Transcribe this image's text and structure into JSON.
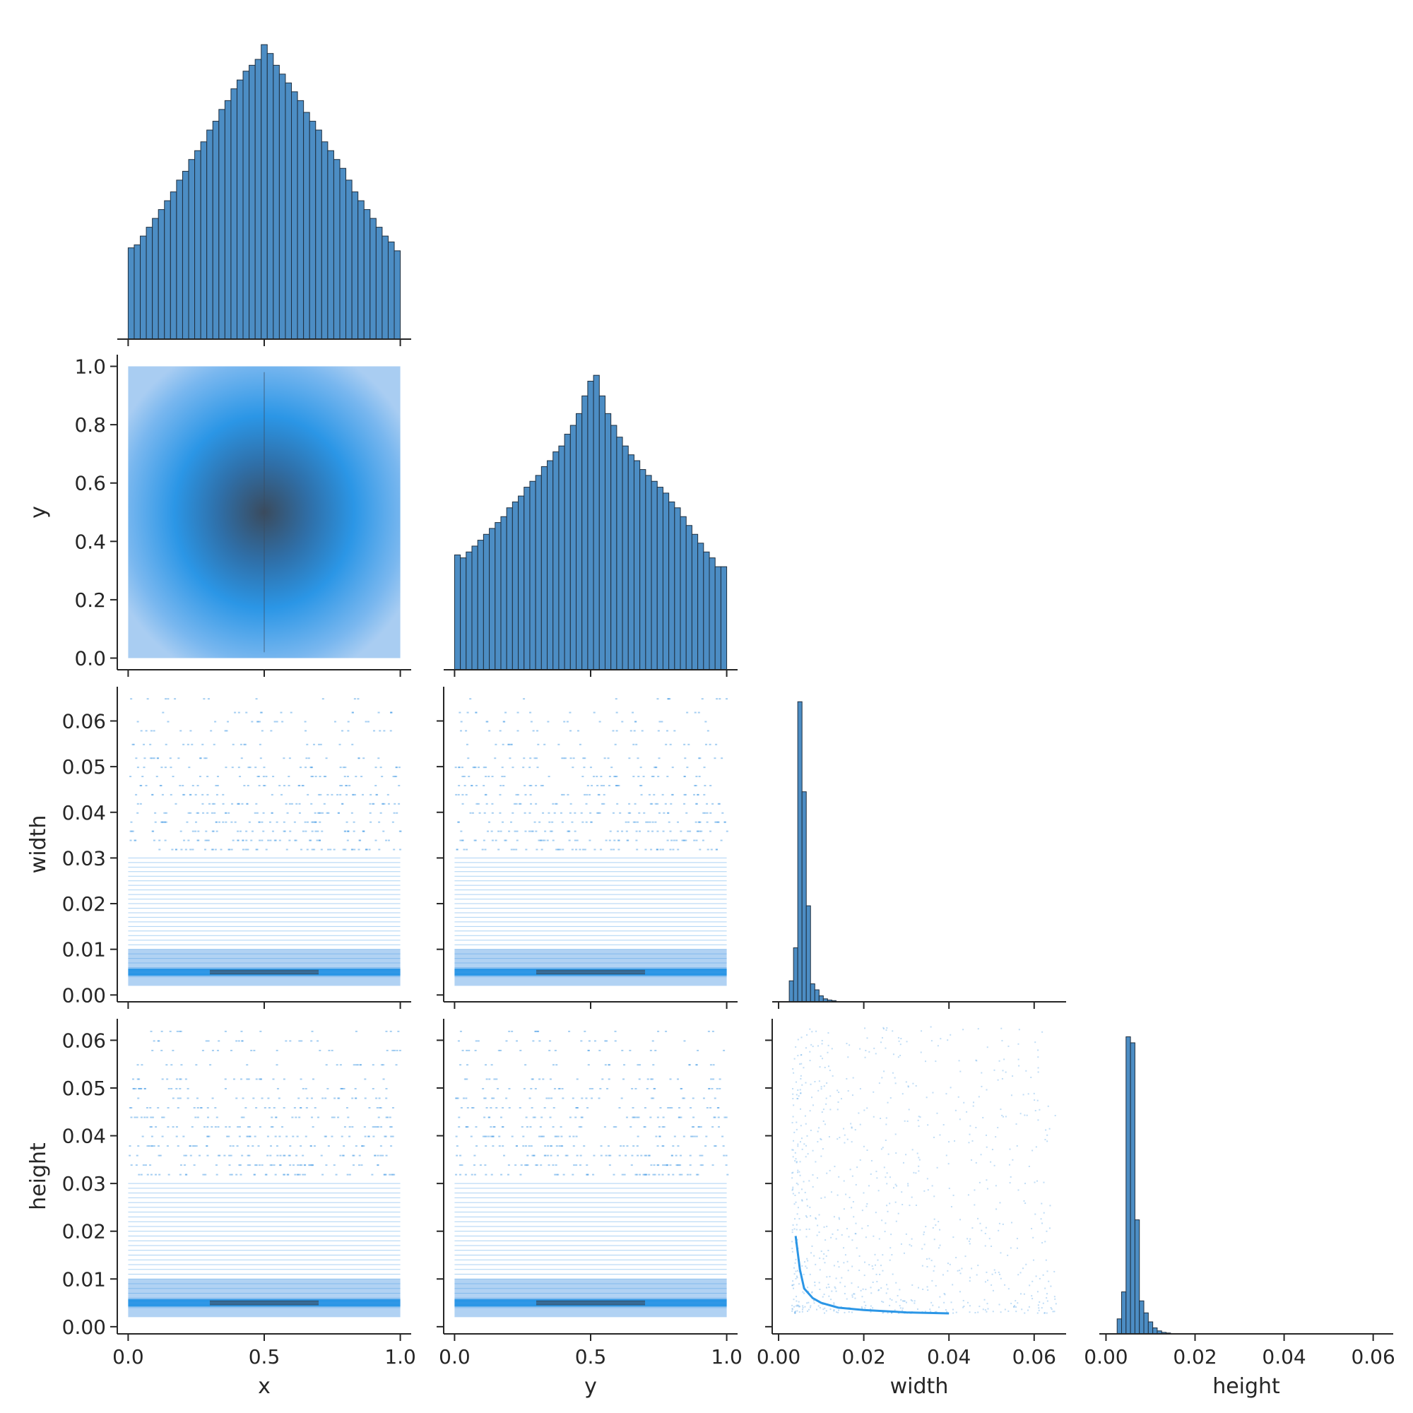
{
  "chart_data": {
    "type": "pairplot",
    "layout": "corner",
    "variables": [
      "x",
      "y",
      "width",
      "height"
    ],
    "colors": {
      "bar_fill": "#4C8DC4",
      "bar_edge": "#1f2f3f",
      "density_light": "#a9cdf2",
      "density_mid": "#2b96e6",
      "density_dark": "#3a4b5e",
      "points": "#4a9de6"
    },
    "axes": {
      "x": {
        "range": [
          -0.04,
          1.04
        ],
        "ticks": [
          0.0,
          0.5,
          1.0
        ],
        "tick_labels": [
          "0.0",
          "0.5",
          "1.0"
        ],
        "label": "x"
      },
      "y": {
        "range": [
          -0.04,
          1.04
        ],
        "ticks": [
          0.0,
          0.2,
          0.4,
          0.6,
          0.8,
          1.0
        ],
        "tick_labels": [
          "0.0",
          "0.2",
          "0.4",
          "0.6",
          "0.8",
          "1.0"
        ],
        "x_ticks": [
          0.0,
          0.5,
          1.0
        ],
        "x_tick_labels": [
          "0.0",
          "0.5",
          "1.0"
        ],
        "label": "y"
      },
      "width": {
        "range": [
          -0.0015,
          0.0675
        ],
        "ticks": [
          0.0,
          0.01,
          0.02,
          0.03,
          0.04,
          0.05,
          0.06
        ],
        "tick_labels": [
          "0.00",
          "0.01",
          "0.02",
          "0.03",
          "0.04",
          "0.05",
          "0.06"
        ],
        "x_ticks": [
          0.0,
          0.02,
          0.04,
          0.06
        ],
        "x_tick_labels": [
          "0.00",
          "0.02",
          "0.04",
          "0.06"
        ],
        "label": "width"
      },
      "height": {
        "range": [
          -0.0015,
          0.0645
        ],
        "ticks": [
          0.0,
          0.01,
          0.02,
          0.03,
          0.04,
          0.05,
          0.06
        ],
        "tick_labels": [
          "0.00",
          "0.01",
          "0.02",
          "0.03",
          "0.04",
          "0.05",
          "0.06"
        ],
        "x_ticks": [
          0.0,
          0.02,
          0.04,
          0.06
        ],
        "x_tick_labels": [
          "0.00",
          "0.02",
          "0.04",
          "0.06"
        ],
        "label": "height"
      }
    },
    "histograms": {
      "x": {
        "bin_range": [
          0,
          1
        ],
        "counts": [
          0.31,
          0.32,
          0.35,
          0.38,
          0.41,
          0.44,
          0.47,
          0.5,
          0.54,
          0.57,
          0.61,
          0.64,
          0.67,
          0.71,
          0.74,
          0.78,
          0.81,
          0.85,
          0.88,
          0.91,
          0.93,
          0.95,
          1.0,
          0.97,
          0.93,
          0.9,
          0.87,
          0.84,
          0.81,
          0.77,
          0.74,
          0.71,
          0.67,
          0.64,
          0.61,
          0.58,
          0.54,
          0.5,
          0.47,
          0.44,
          0.41,
          0.38,
          0.35,
          0.33,
          0.3
        ],
        "count_max": 1.07
      },
      "y": {
        "bin_range": [
          0,
          1
        ],
        "counts": [
          0.39,
          0.38,
          0.4,
          0.42,
          0.44,
          0.46,
          0.48,
          0.5,
          0.52,
          0.55,
          0.57,
          0.59,
          0.62,
          0.64,
          0.66,
          0.69,
          0.71,
          0.74,
          0.76,
          0.8,
          0.83,
          0.87,
          0.93,
          0.98,
          1.0,
          0.93,
          0.87,
          0.83,
          0.79,
          0.76,
          0.73,
          0.71,
          0.68,
          0.66,
          0.64,
          0.62,
          0.6,
          0.57,
          0.55,
          0.52,
          0.49,
          0.46,
          0.43,
          0.4,
          0.38,
          0.35,
          0.35
        ],
        "count_max": 1.07
      },
      "width": {
        "bins": [
          [
            0.0025,
            0.0035,
            0.07
          ],
          [
            0.0035,
            0.0045,
            0.18
          ],
          [
            0.0045,
            0.0055,
            1.0
          ],
          [
            0.0055,
            0.0065,
            0.7
          ],
          [
            0.0065,
            0.0075,
            0.32
          ],
          [
            0.0075,
            0.0085,
            0.06
          ],
          [
            0.0085,
            0.0095,
            0.04
          ],
          [
            0.0095,
            0.0105,
            0.02
          ],
          [
            0.0105,
            0.0115,
            0.01
          ],
          [
            0.0115,
            0.0125,
            0.006
          ],
          [
            0.0125,
            0.0135,
            0.004
          ]
        ],
        "count_max": 1.05
      },
      "height": {
        "bins": [
          [
            0.0025,
            0.0035,
            0.05
          ],
          [
            0.0035,
            0.0045,
            0.14
          ],
          [
            0.0045,
            0.0055,
            0.99
          ],
          [
            0.0055,
            0.0065,
            0.97
          ],
          [
            0.0065,
            0.0075,
            0.38
          ],
          [
            0.0075,
            0.0085,
            0.11
          ],
          [
            0.0085,
            0.0095,
            0.07
          ],
          [
            0.0095,
            0.0105,
            0.04
          ],
          [
            0.0105,
            0.0115,
            0.02
          ],
          [
            0.0115,
            0.0125,
            0.01
          ],
          [
            0.0125,
            0.0135,
            0.005
          ],
          [
            0.0135,
            0.0145,
            0.003
          ]
        ],
        "count_max": 1.05
      }
    },
    "scatter_bands": {
      "size_levels": [
        0.004,
        0.005,
        0.006,
        0.007,
        0.008,
        0.009,
        0.01,
        0.011,
        0.012,
        0.013,
        0.014,
        0.015,
        0.016,
        0.017,
        0.018,
        0.019,
        0.02,
        0.021,
        0.022,
        0.023,
        0.024,
        0.025,
        0.026,
        0.027,
        0.028,
        0.029,
        0.03,
        0.032,
        0.034,
        0.036,
        0.038,
        0.04,
        0.042,
        0.044,
        0.046,
        0.048,
        0.05,
        0.052,
        0.055,
        0.058,
        0.06,
        0.062,
        0.065
      ],
      "dense_band": [
        0.002,
        0.01
      ],
      "peak_level": 0.005
    },
    "width_height_min_curve": {
      "x": [
        0.004,
        0.005,
        0.006,
        0.008,
        0.01,
        0.014,
        0.02,
        0.03,
        0.04
      ],
      "y": [
        0.019,
        0.012,
        0.008,
        0.006,
        0.005,
        0.004,
        0.0035,
        0.003,
        0.0028
      ]
    }
  }
}
